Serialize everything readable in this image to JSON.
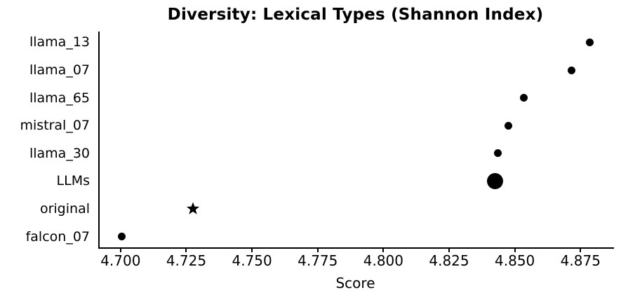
{
  "chart_data": {
    "type": "scatter",
    "variant": "horizontal-dot-plot",
    "title": "Diversity: Lexical Types (Shannon Index)",
    "xlabel": "Score",
    "xlim": [
      4.6915,
      4.8872
    ],
    "xticks": [
      4.7,
      4.725,
      4.75,
      4.775,
      4.8,
      4.825,
      4.85,
      4.875
    ],
    "xtick_labels": [
      "4.700",
      "4.725",
      "4.750",
      "4.775",
      "4.800",
      "4.825",
      "4.850",
      "4.875"
    ],
    "grid": false,
    "background_color": "#ffffff",
    "marker_color": "#000000",
    "categories": [
      "llama_13",
      "llama_07",
      "llama_65",
      "mistral_07",
      "llama_30",
      "LLMs",
      "original",
      "falcon_07"
    ],
    "points": [
      {
        "label": "llama_13",
        "value": 4.878,
        "marker": "circle",
        "size": 11
      },
      {
        "label": "llama_07",
        "value": 4.871,
        "marker": "circle",
        "size": 11
      },
      {
        "label": "llama_65",
        "value": 4.853,
        "marker": "circle",
        "size": 11
      },
      {
        "label": "mistral_07",
        "value": 4.847,
        "marker": "circle",
        "size": 11
      },
      {
        "label": "llama_30",
        "value": 4.843,
        "marker": "circle",
        "size": 11
      },
      {
        "label": "LLMs",
        "value": 4.842,
        "marker": "circle",
        "size": 23
      },
      {
        "label": "original",
        "value": 4.727,
        "marker": "star",
        "size": 20
      },
      {
        "label": "falcon_07",
        "value": 4.7,
        "marker": "circle",
        "size": 11
      }
    ]
  }
}
